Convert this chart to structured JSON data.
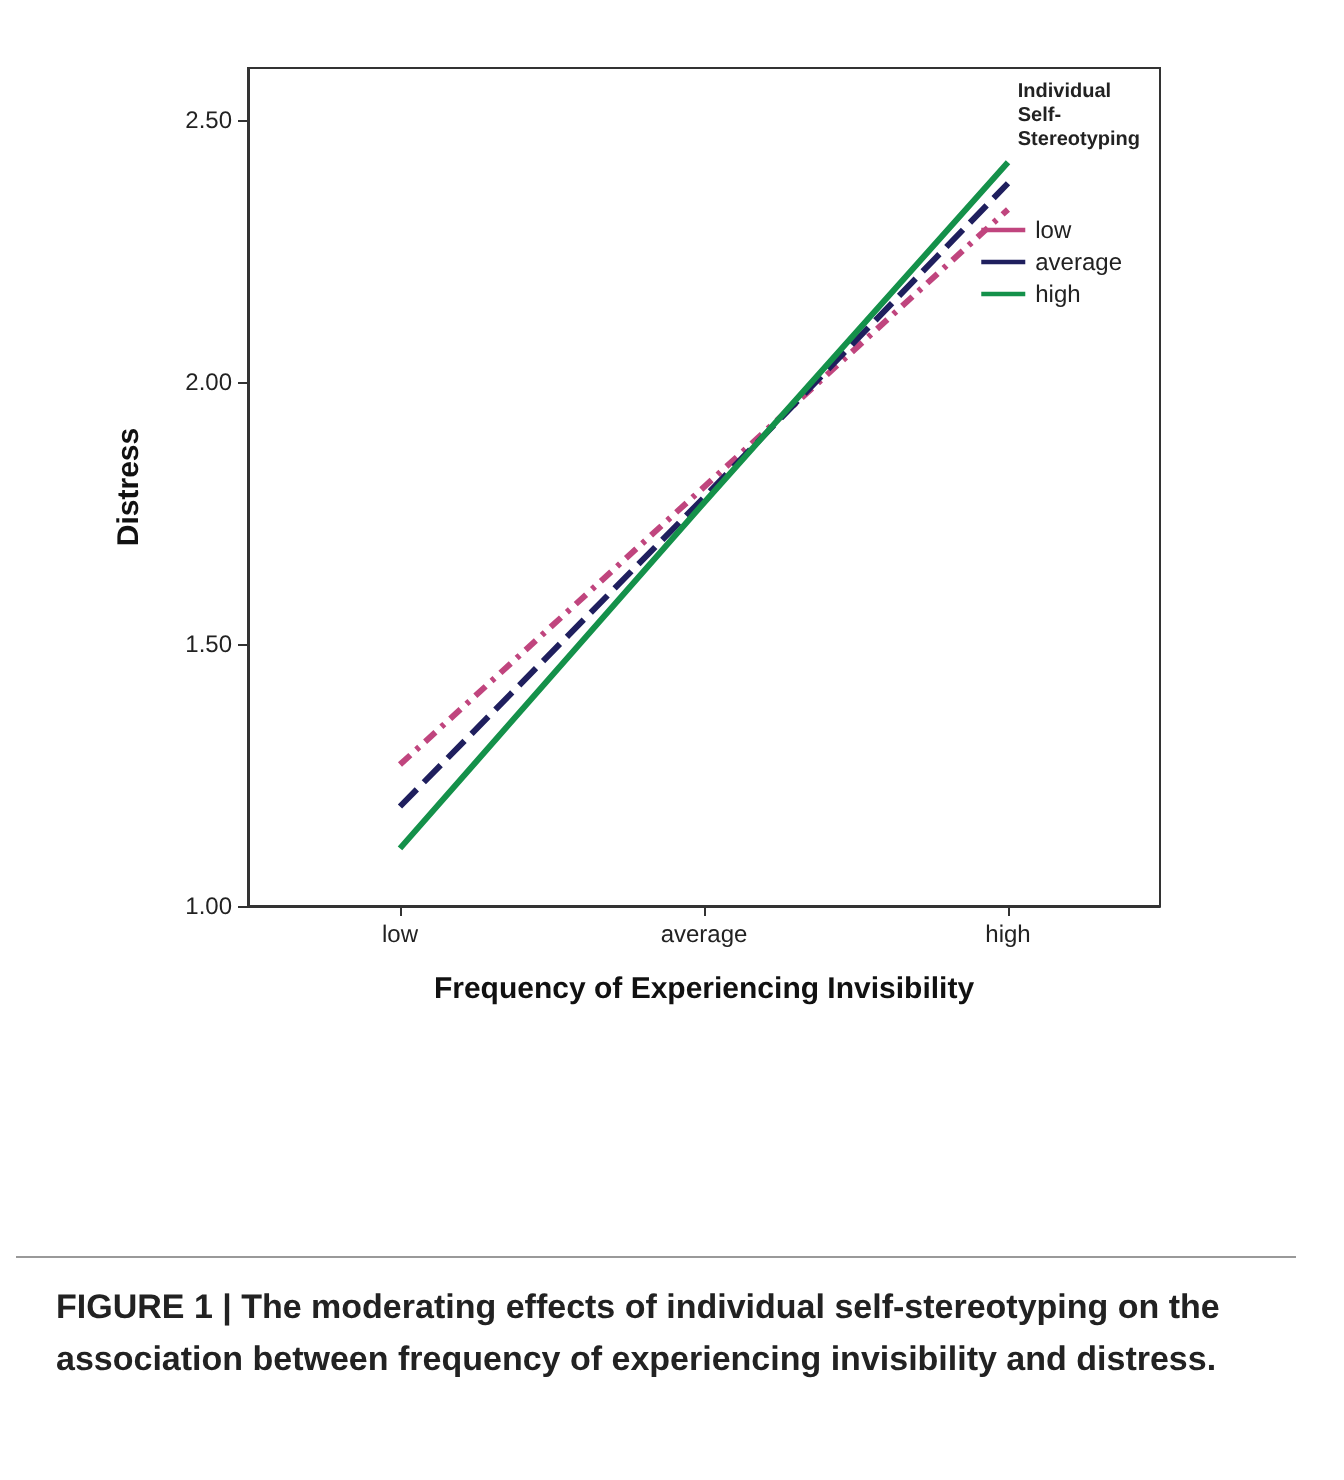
{
  "chart_data": {
    "type": "line",
    "xlabel": "Frequency of Experiencing Invisibility",
    "ylabel": "Distress",
    "legend_title": "Individual Self-Stereotyping",
    "categories": [
      "low",
      "average",
      "high"
    ],
    "series": [
      {
        "name": "low",
        "color": "#c0457e",
        "line_style": "dotted",
        "values": [
          1.27,
          1.8,
          2.33
        ]
      },
      {
        "name": "average",
        "color": "#1f1f5e",
        "line_style": "dashed",
        "values": [
          1.19,
          1.78,
          2.38
        ]
      },
      {
        "name": "high",
        "color": "#14914a",
        "line_style": "solid",
        "values": [
          1.11,
          1.77,
          2.42
        ]
      }
    ],
    "ylim": [
      1.0,
      2.6
    ],
    "yticks": [
      {
        "value": 1.0,
        "label": "1.00"
      },
      {
        "value": 1.5,
        "label": "1.50"
      },
      {
        "value": 2.0,
        "label": "2.00"
      },
      {
        "value": 2.5,
        "label": "2.50"
      }
    ],
    "grid": false,
    "legend": "top right",
    "marker": "none",
    "annotations": [
      "FIGURE 1 | The moderating effects of individual self-stereotyping on the association between frequency of experiencing invisibility and distress."
    ]
  }
}
